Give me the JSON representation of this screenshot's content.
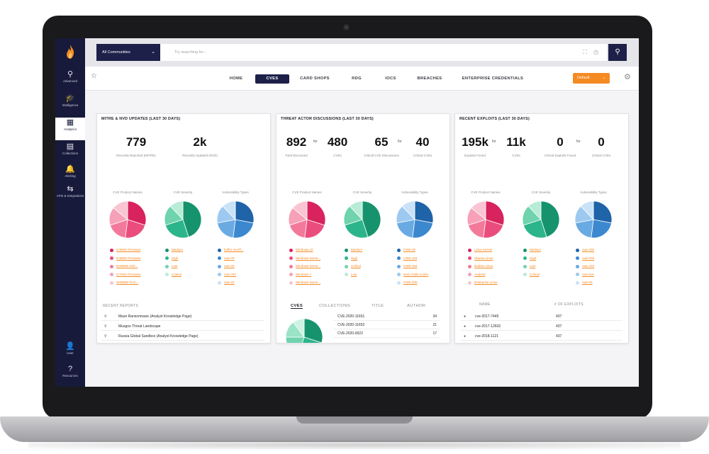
{
  "sidebar": {
    "items": [
      {
        "icon": "search-icon",
        "glyph": "⚲",
        "label": "Advanced"
      },
      {
        "icon": "intelligence-icon",
        "glyph": "🎓",
        "label": "Intelligence"
      },
      {
        "icon": "analytics-icon",
        "glyph": "▦",
        "label": "Analytics"
      },
      {
        "icon": "collections-icon",
        "glyph": "▤",
        "label": "Collections"
      },
      {
        "icon": "alerts-icon",
        "glyph": "🔔",
        "label": "Alerting"
      },
      {
        "icon": "integrations-icon",
        "glyph": "⇆",
        "label": "APIs & Integrations"
      }
    ],
    "bottom": [
      {
        "icon": "user-icon",
        "glyph": "👤",
        "label": "User"
      },
      {
        "icon": "help-icon",
        "glyph": "?",
        "label": "Resources"
      }
    ]
  },
  "topbar": {
    "scope": "All Communities",
    "search_placeholder": "Try searching for..."
  },
  "nav": {
    "tabs": [
      "HOME",
      "CVES",
      "CARD SHOPS",
      "RDG",
      "IOCS",
      "BREACHES",
      "ENTERPRISE CREDENTIALS"
    ],
    "active": "CVES",
    "default_label": "Default"
  },
  "panels": [
    {
      "title": "MITRE & NVD UPDATES (LAST 30 DAYS)",
      "stats": [
        {
          "value": "779",
          "label": "Recently Reported (MITRE)"
        },
        {
          "value": "2k",
          "label": "Recently Updated (NVD)"
        }
      ],
      "pie_titles": [
        "CVE Product Names",
        "CVE Severity",
        "Vulnerability Types"
      ],
      "legends": [
        [
          {
            "label": "IC9000 Firmware",
            "color": "#d8235e"
          },
          {
            "label": "IC8000 Firmware",
            "color": "#ea4d7d"
          },
          {
            "label": "NetWEB 2S0...",
            "color": "#f3799b"
          },
          {
            "label": "IC7000 Firmware",
            "color": "#f7a1b9"
          },
          {
            "label": "NetWEB Firm...",
            "color": "#fac4d3"
          }
        ],
        [
          {
            "label": "Medium",
            "color": "#16936d"
          },
          {
            "label": "High",
            "color": "#2cb58a"
          },
          {
            "label": "Low",
            "color": "#6fd3ad"
          },
          {
            "label": "Critical",
            "color": "#b8ecd7"
          }
        ],
        [
          {
            "label": "buffer overfl...",
            "color": "#1f63a8"
          },
          {
            "label": "cwe-79",
            "color": "#3c88cf"
          },
          {
            "label": "cwe-20",
            "color": "#6aaae3"
          },
          {
            "label": "cwe-787",
            "color": "#9dc9f0"
          },
          {
            "label": "cwe-22",
            "color": "#c9e2f8"
          }
        ]
      ],
      "reports_title": "RECENT REPORTS",
      "reports": [
        "Maze Ransomware (Analyst Knowledge Page)",
        "Musgoo Threat Landscape",
        "Russia Global Sandbox (Analyst Knowledge Page)"
      ]
    },
    {
      "title": "THREAT ACTOR DISCUSSIONS (LAST 30 DAYS)",
      "stats": [
        {
          "value": "892",
          "label": "Total Discussed"
        },
        {
          "value": "480",
          "label": "CVEs"
        },
        {
          "value": "65",
          "label": "Critical CVE Discussions"
        },
        {
          "value": "40",
          "label": "Critical CVEs"
        }
      ],
      "for_label": "for",
      "pie_titles": [
        "CVE Product Names",
        "CVE Severity",
        "Vulnerability Types"
      ],
      "legends": [
        [
          {
            "label": "Windows 10",
            "color": "#d8235e"
          },
          {
            "label": "Windows Serve...",
            "color": "#ea4d7d"
          },
          {
            "label": "Windows Serve...",
            "color": "#f3799b"
          },
          {
            "label": "Windows 7",
            "color": "#f7a1b9"
          },
          {
            "label": "Windows Serve...",
            "color": "#fac4d3"
          }
        ],
        [
          {
            "label": "Medium",
            "color": "#16936d"
          },
          {
            "label": "High",
            "color": "#2cb58a"
          },
          {
            "label": "Critical",
            "color": "#6fd3ad"
          },
          {
            "label": "Low",
            "color": "#b8ecd7"
          }
        ],
        [
          {
            "label": "CWE-20",
            "color": "#1f63a8"
          },
          {
            "label": "CWE-119",
            "color": "#3c88cf"
          },
          {
            "label": "CWE-264",
            "color": "#6aaae3"
          },
          {
            "label": "NVD CWE-noinfo",
            "color": "#9dc9f0"
          },
          {
            "label": "CWE-200",
            "color": "#c9e2f8"
          }
        ]
      ],
      "tabs": [
        "CVES",
        "COLLECTIONS",
        "TITLE",
        "AUTHOR"
      ],
      "rows": [
        {
          "name": "CVE-2020-11651",
          "count": "34"
        },
        {
          "name": "CVE-2020-11652",
          "count": "21"
        },
        {
          "name": "CVE-2020-0022",
          "count": "17"
        }
      ]
    },
    {
      "title": "RECENT EXPLOITS (LAST 30 DAYS)",
      "stats": [
        {
          "value": "195k",
          "label": "Exploits Found"
        },
        {
          "value": "11k",
          "label": "CVEs"
        },
        {
          "value": "0",
          "label": "Critical Exploits Found"
        },
        {
          "value": "0",
          "label": "Critical CVEs"
        }
      ],
      "for_label": "for",
      "pie_titles": [
        "CVE Product Names",
        "CVE Severity",
        "Vulnerability Types"
      ],
      "legends": [
        [
          {
            "label": "Linux Kernel",
            "color": "#d8235e"
          },
          {
            "label": "Ubuntu Linux",
            "color": "#ea4d7d"
          },
          {
            "label": "Debian Linux",
            "color": "#f3799b"
          },
          {
            "label": "Android",
            "color": "#f7a1b9"
          },
          {
            "label": "Enterprise Linux",
            "color": "#fac4d3"
          }
        ],
        [
          {
            "label": "Medium",
            "color": "#16936d"
          },
          {
            "label": "High",
            "color": "#2cb58a"
          },
          {
            "label": "Low",
            "color": "#6fd3ad"
          },
          {
            "label": "Critical",
            "color": "#b8ecd7"
          }
        ],
        [
          {
            "label": "cwe-200",
            "color": "#1f63a8"
          },
          {
            "label": "cwe-476",
            "color": "#3c88cf"
          },
          {
            "label": "cwe-416",
            "color": "#6aaae3"
          },
          {
            "label": "cwe-119",
            "color": "#9dc9f0"
          },
          {
            "label": "cwe-20",
            "color": "#c9e2f8"
          }
        ]
      ],
      "table_headers": [
        "NAME",
        "# OF EXPLOITS"
      ],
      "rows": [
        {
          "name": "cve-2017-7445",
          "count": "437"
        },
        {
          "name": "cve-2017-12602",
          "count": "437"
        },
        {
          "name": "cve-2018-1121",
          "count": "437"
        }
      ]
    }
  ],
  "pies": {
    "products": [
      0.3,
      0.22,
      0.18,
      0.16,
      0.14
    ],
    "severity": [
      0.45,
      0.25,
      0.18,
      0.12
    ],
    "vuln": [
      0.28,
      0.24,
      0.2,
      0.16,
      0.12
    ]
  },
  "colors": {
    "sidebar": "#171a3a",
    "accent": "#f58a23",
    "nav_active": "#1d2048"
  }
}
